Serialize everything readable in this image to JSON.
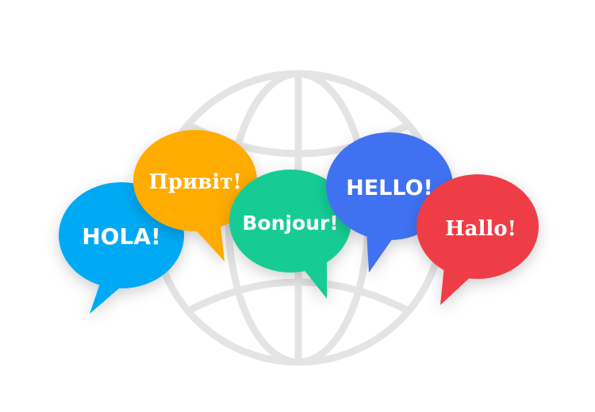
{
  "illustration": {
    "globe": {
      "icon": "globe-icon",
      "color": "#e4e4e4"
    },
    "bubbles": [
      {
        "key": "hola",
        "text": "HOLA!",
        "color": "#03a9f4"
      },
      {
        "key": "pryvit",
        "text": "Привіт!",
        "color": "#ffab00"
      },
      {
        "key": "bonjour",
        "text": "Bonjour!",
        "color": "#14cc94"
      },
      {
        "key": "hello",
        "text": "HELLO!",
        "color": "#3f71f1"
      },
      {
        "key": "hallo",
        "text": "Hallo!",
        "color": "#ef3e46"
      }
    ]
  }
}
